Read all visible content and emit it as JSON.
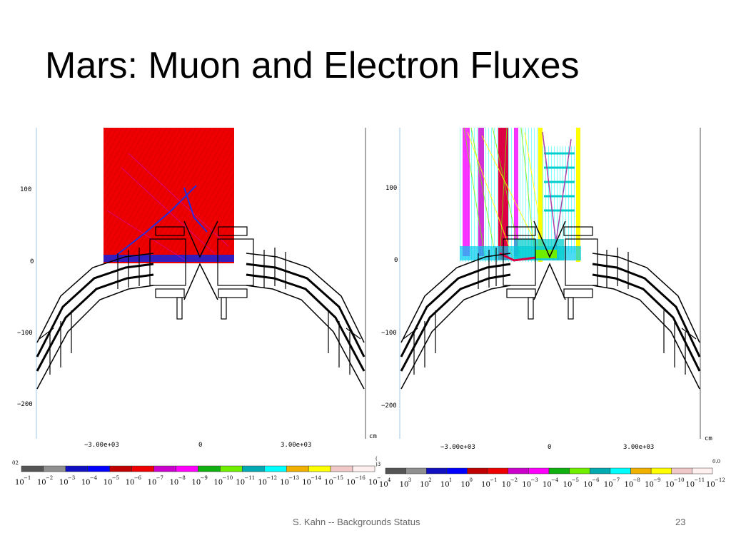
{
  "slide": {
    "title": "Mars: Muon and Electron Fluxes",
    "footer_text": "S. Kahn -- Backgrounds Status",
    "page_number": "23"
  },
  "colors": {
    "scale": [
      "#555555",
      "#909090",
      "#1010c0",
      "#0000ff",
      "#c00000",
      "#ee0000",
      "#cc00cc",
      "#ff00ff",
      "#10b010",
      "#70ee00",
      "#00aab0",
      "#00ffff",
      "#f0b000",
      "#ffff00",
      "#f0c8c8",
      "#fff0f0"
    ]
  },
  "plots": [
    {
      "name": "muon",
      "y_ticks": [
        "100",
        "0",
        "−100",
        "−200"
      ],
      "x_ticks": [
        "−3.00e+03",
        "0",
        "3.00e+03"
      ],
      "unit": "cm",
      "colorbar_left_label": "02",
      "colorbar_right_label": "(",
      "colorbar_right_label2": ")3",
      "colorbar_exponents": [
        "−1",
        "−2",
        "−3",
        "−4",
        "−5",
        "−6",
        "−7",
        "−8",
        "−9",
        "−10",
        "−11",
        "−12",
        "−13",
        "−14",
        "−15",
        "−16",
        "−17"
      ]
    },
    {
      "name": "electron",
      "y_ticks": [
        "100",
        "0",
        "−100",
        "−200"
      ],
      "x_ticks": [
        "−3.00e+03",
        "0",
        "3.00e+03"
      ],
      "unit": "cm",
      "colorbar_right_label": "0.0",
      "colorbar_exponents": [
        "4",
        "3",
        "2",
        "1",
        "0",
        "−1",
        "−2",
        "−3",
        "−4",
        "−5",
        "−6",
        "−7",
        "−8",
        "−9",
        "−10",
        "−11",
        "−12"
      ]
    }
  ]
}
